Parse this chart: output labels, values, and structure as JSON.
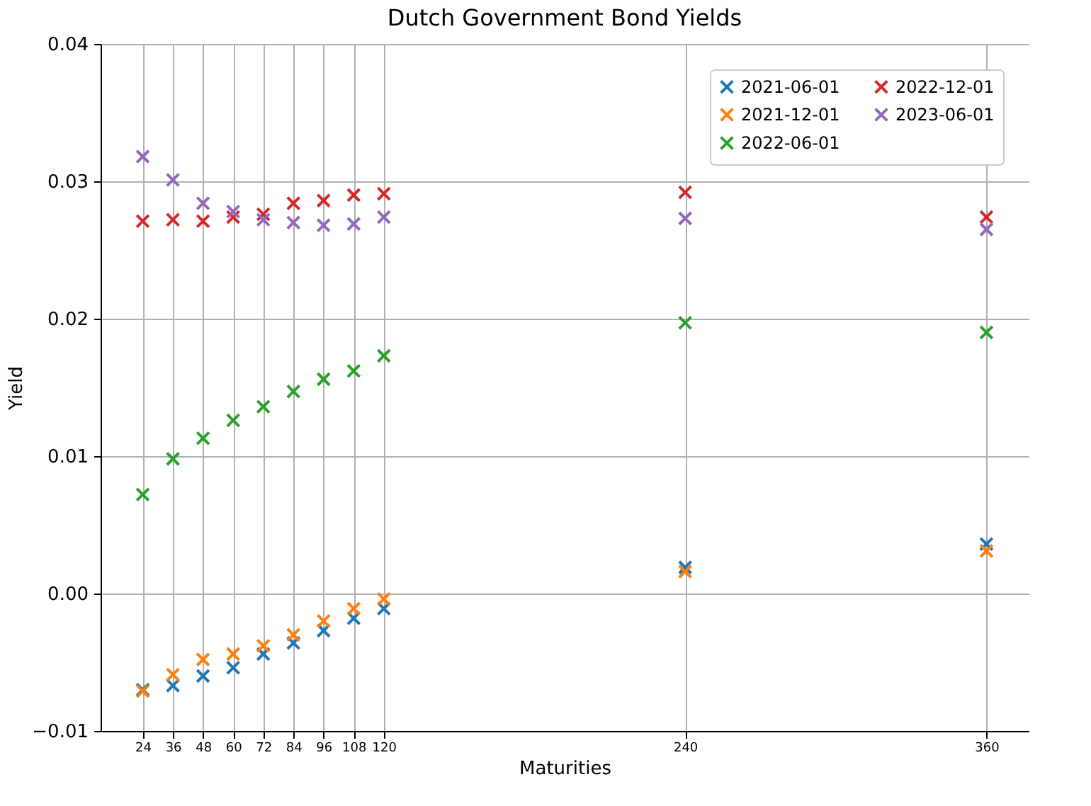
{
  "chart_data": {
    "type": "scatter",
    "title": "Dutch Government Bond Yields",
    "xlabel": "Maturities",
    "ylabel": "Yield",
    "x": [
      24,
      36,
      48,
      60,
      72,
      84,
      96,
      108,
      120,
      240,
      360
    ],
    "xlim": [
      7.2,
      376.8
    ],
    "xticks": [
      24,
      36,
      48,
      60,
      72,
      84,
      96,
      108,
      120,
      240,
      360
    ],
    "ylim": [
      -0.01,
      0.04
    ],
    "yticks": [
      {
        "value": -0.01,
        "label": "−0.01"
      },
      {
        "value": 0,
        "label": "0.00"
      },
      {
        "value": 0.01,
        "label": "0.01"
      },
      {
        "value": 0.02,
        "label": "0.02"
      },
      {
        "value": 0.03,
        "label": "0.03"
      },
      {
        "value": 0.04,
        "label": "0.04"
      }
    ],
    "grid": true,
    "legend": "top right",
    "marker": "cross",
    "series": [
      {
        "name": "2021-06-01",
        "color": "#1f77b4",
        "values": [
          -0.007,
          -0.0067,
          -0.006,
          -0.0054,
          -0.0044,
          -0.0036,
          -0.0027,
          -0.0018,
          -0.0011,
          0.0019,
          0.0036
        ]
      },
      {
        "name": "2021-12-01",
        "color": "#ff7f0e",
        "values": [
          -0.0071,
          -0.0059,
          -0.0048,
          -0.0044,
          -0.0038,
          -0.003,
          -0.002,
          -0.0011,
          -0.0004,
          0.0016,
          0.0031
        ]
      },
      {
        "name": "2022-06-01",
        "color": "#2ca02c",
        "values": [
          0.0072,
          0.0098,
          0.0113,
          0.0126,
          0.0136,
          0.0147,
          0.0156,
          0.0162,
          0.0173,
          0.0197,
          0.019
        ]
      },
      {
        "name": "2022-12-01",
        "color": "#d62728",
        "values": [
          0.0271,
          0.0272,
          0.0271,
          0.0274,
          0.0276,
          0.0284,
          0.0286,
          0.029,
          0.0291,
          0.0292,
          0.0274
        ]
      },
      {
        "name": "2023-06-01",
        "color": "#9467bd",
        "values": [
          0.0318,
          0.0301,
          0.0284,
          0.0278,
          0.0272,
          0.027,
          0.0268,
          0.0269,
          0.0274,
          0.0273,
          0.0265
        ]
      }
    ]
  }
}
